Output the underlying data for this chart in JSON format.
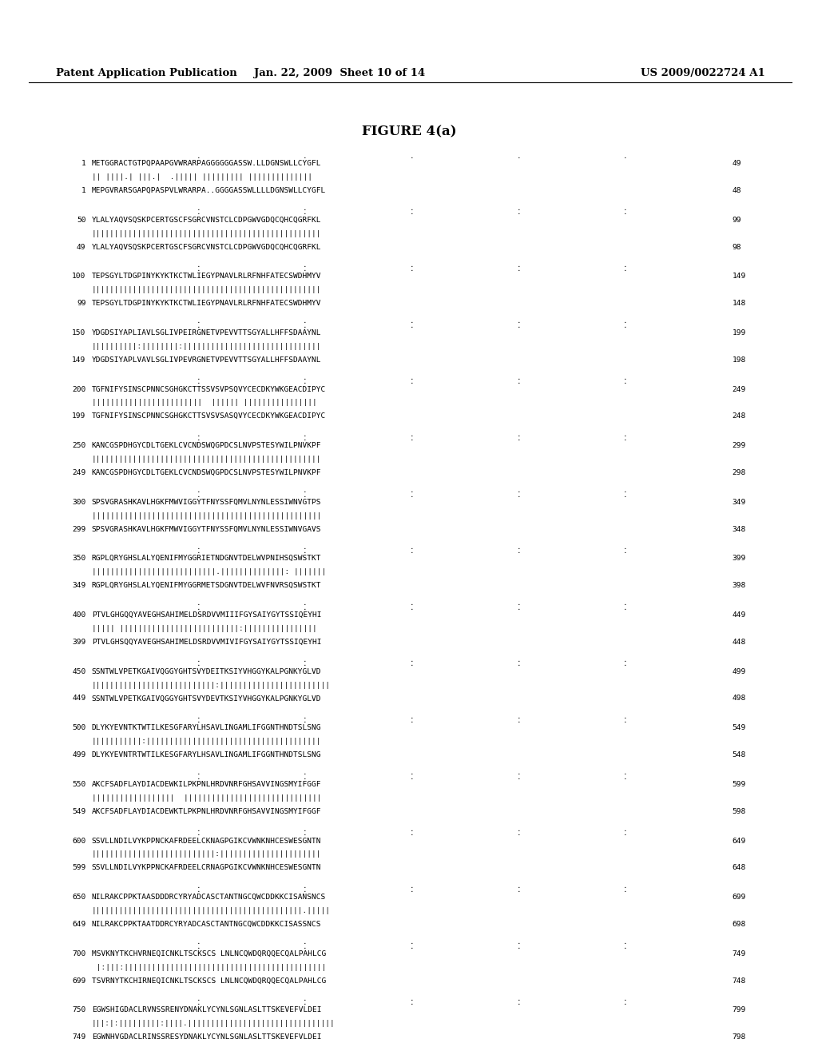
{
  "header_left": "Patent Application Publication",
  "header_middle": "Jan. 22, 2009  Sheet 10 of 14",
  "header_right": "US 2009/0022724 A1",
  "figure_title": "FIGURE 4(a)",
  "alignment_blocks": [
    {
      "seq1_num": "1",
      "seq1": "METGGRACTGTPQPAAPGVWRARPAGGGGGGASSW.LLDGNSWLLCYGFL",
      "seq1_end": "49",
      "bars": "|| ||||.| |||.|  .||||| ||||||||| ||||||||||||||",
      "seq2_num": "1",
      "seq2": "MEPGVRARSGAPQPASPVLWRARPA..GGGGASSWLLLLDGNSWLLCYGFL",
      "seq2_end": "48"
    },
    {
      "seq1_num": "50",
      "seq1": "YLALYAQVSQSKPCERTGSCFSGRCVNSTCLCDPGWVGDQCQHCQGRFKL",
      "seq1_end": "99",
      "bars": "||||||||||||||||||||||||||||||||||||||||||||||||||",
      "seq2_num": "49",
      "seq2": "YLALYAQVSQSKPCERTGSCFSGRCVNSTCLCDPGWVGDQCQHCQGRFKL",
      "seq2_end": "98"
    },
    {
      "seq1_num": "100",
      "seq1": "TEPSGYLTDGPINYKYKTKCTWLIEGYPNAVLRLRFNHFATECSWDHMYV",
      "seq1_end": "149",
      "bars": "||||||||||||||||||||||||||||||||||||||||||||||||||",
      "seq2_num": "99",
      "seq2": "TEPSGYLTDGPINYKYKTKCTWLIEGYPNAVLRLRFNHFATECSWDHMYV",
      "seq2_end": "148"
    },
    {
      "seq1_num": "150",
      "seq1": "YDGDSIYAPLIAVLSGLIVPEIRGNETVPEVVTTSGYALLHFFSDAAYNL",
      "seq1_end": "199",
      "bars": "||||||||||:||||||||:||||||||||||||||||||||||||||||",
      "seq2_num": "149",
      "seq2": "YDGDSIYAPLVAVLSGLIVPEVRGNETVPEVVTTSGYALLHFFSDAAYNL",
      "seq2_end": "198"
    },
    {
      "seq1_num": "200",
      "seq1": "TGFNIFYSINSCPNNCSGHGKCTTSSVSVPSQVYCECDKYWKGEACDIPYC",
      "seq1_end": "249",
      "bars": "||||||||||||||||||||||||  |||||| ||||||||||||||||",
      "seq2_num": "199",
      "seq2": "TGFNIFYSINSCPNNCSGHGKCTTSVSVSASQVYCECDKYWKGEACDIPYC",
      "seq2_end": "248"
    },
    {
      "seq1_num": "250",
      "seq1": "KANCGSPDHGYCDLTGEKLCVCNDSWQGPDCSLNVPSTESYWILPNVKPF",
      "seq1_end": "299",
      "bars": "||||||||||||||||||||||||||||||||||||||||||||||||||",
      "seq2_num": "249",
      "seq2": "KANCGSPDHGYCDLTGEKLCVCNDSWQGPDCSLNVPSTESYWILPNVKPF",
      "seq2_end": "298"
    },
    {
      "seq1_num": "300",
      "seq1": "SPSVGRASHKAVLHGKFMWVIGGYTFNYSSFQMVLNYNLESSIWNVGTPS",
      "seq1_end": "349",
      "bars": "|||||||||||||||||||||||||||||||||||||||||||||||||| ",
      "seq2_num": "299",
      "seq2": "SPSVGRASHKAVLHGKFMWVIGGYTFNYSSFQMVLNYNLESSIWNVGAVS",
      "seq2_end": "348"
    },
    {
      "seq1_num": "350",
      "seq1": "RGPLQRYGHSLALYQENIFMYGGRIETNDGNVTDELWVPNIHSQSWSTKT",
      "seq1_end": "399",
      "bars": "|||||||||||||||||||||||||||.||||||||||||||: |||||||",
      "seq2_num": "349",
      "seq2": "RGPLQRYGHSLALYQENIFMYGGRMETSDGNVTDELWVFNVRSQSWSTKT",
      "seq2_end": "398"
    },
    {
      "seq1_num": "400",
      "seq1": "PTVLGHGQQYAVEGHSAHIMELDSRDVVMIIIFGYSAIYGYTSSIQEYHI",
      "seq1_end": "449",
      "bars": "||||| ||||||||||||||||||||||||||:||||||||||||||||",
      "seq2_num": "399",
      "seq2": "PTVLGHSQQYAVEGHSAHIMELDSRDVVMIVIFGYSAIYGYTSSIQEYHI",
      "seq2_end": "448"
    },
    {
      "seq1_num": "450",
      "seq1": "SSNTWLVPETKGAIVQGGYGHTSVYDEITKSIYVHGGYKALPGNKYGLVD",
      "seq1_end": "499",
      "bars": "|||||||||||||||||||||||||||:||||||||||||||||||||||||",
      "seq2_num": "449",
      "seq2": "SSNTWLVPETKGAIVQGGYGHTSVYDEVTKSIYVHGGYKALPGNKYGLVD",
      "seq2_end": "498"
    },
    {
      "seq1_num": "500",
      "seq1": "DLYKYEVNTKTWTILKESGFARYLHSAVLINGAMLIFGGNTHNDTSLSNG",
      "seq1_end": "549",
      "bars": "|||||||||||:||||||||||||||||||||||||||||||||||||||",
      "seq2_num": "499",
      "seq2": "DLYKYEVNTRTWTILKESGFARYLHSAVLINGAMLIFGGNTHNDTSLSNG",
      "seq2_end": "548"
    },
    {
      "seq1_num": "550",
      "seq1": "AKCFSADFLAYDIACDEWKILPKPNLHRDVNRFGHSAVVINGSMYIFGGF",
      "seq1_end": "599",
      "bars": "||||||||||||||||||  ||||||||||||||||||||||||||||||",
      "seq2_num": "549",
      "seq2": "AKCFSADFLAYDIACDEWKTLPKPNLHRDVNRFGHSAVVINGSMYIFGGF",
      "seq2_end": "598"
    },
    {
      "seq1_num": "600",
      "seq1": "SSVLLNDILVYKPPNCKAFRDEELCKNAGPGIKCVWNKNHCESWESGNTN",
      "seq1_end": "649",
      "bars": "|||||||||||||||||||||||||||:||||||||||||||||||||||",
      "seq2_num": "599",
      "seq2": "SSVLLNDILVYKPPNCKAFRDEELCRNAGPGIKCVWNKNHCESWESGNTN",
      "seq2_end": "648"
    },
    {
      "seq1_num": "650",
      "seq1": "NILRAKCPPKTAASDDDRCYRYADCASCTANTNGCQWCDDKKCISANSNCS",
      "seq1_end": "699",
      "bars": "||||||||||||||||||||||||||||||||||||||||||||||.|||||",
      "seq2_num": "649",
      "seq2": "NILRAKCPPKTAATDDRCYRYADCASCTANTNGCQWCDDKKCISASSNCS",
      "seq2_end": "698"
    },
    {
      "seq1_num": "700",
      "seq1": "MSVKNYTKCHVRNEQICNKLTSCKSCS LNLNCQWDQRQQECQALPAHLCG",
      "seq1_end": "749",
      "bars": " |:|||:||||||||||||||||||||||||||||||||||||||||||||",
      "seq2_num": "699",
      "seq2": "TSVRNYTKCHIRNEQICNKLTSCKSCS LNLNCQWDQRQQECQALPAHLCG",
      "seq2_end": "748"
    },
    {
      "seq1_num": "750",
      "seq1": "EGWSHIGDACLRVNSSRENYDNAKLYCYNLSGNLASLTTSKEVEFVLDEI",
      "seq1_end": "799",
      "bars": "|||:|:|||||||||:||||.||||||||||||||||||||||||||||||||",
      "seq2_num": "749",
      "seq2": "EGWNHVGDACLRINSSRESYDNAKLYCYNLSGNLASLTTSKEVEFVLDEI",
      "seq2_end": "798"
    }
  ],
  "font_size_header": 9.5,
  "font_size_seq": 6.8,
  "font_size_title": 12,
  "bg_color": "#ffffff",
  "text_color": "#000000"
}
